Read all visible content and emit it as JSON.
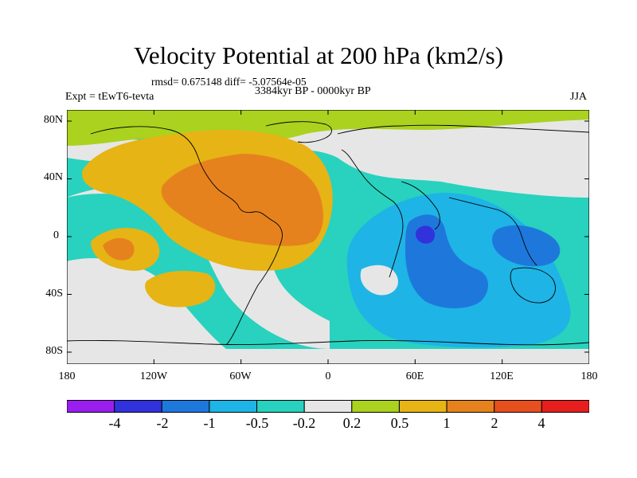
{
  "title": "Velocity Potential at 200 hPa (km2/s)",
  "stats": "rmsd= 0.675148  diff= -5.07564e-05",
  "period": "3384kyr BP - 0000kyr BP",
  "experiment": "Expt = tEwT6-tevta",
  "season": "JJA",
  "y_ticks": [
    "80N",
    "40N",
    "0",
    "40S",
    "80S"
  ],
  "x_ticks": [
    "180",
    "120W",
    "60W",
    "0",
    "60E",
    "120E",
    "180"
  ],
  "colorbar": {
    "labels": [
      "-4",
      "-2",
      "-1",
      "-0.5",
      "-0.2",
      "0.2",
      "0.5",
      "1",
      "2",
      "4"
    ],
    "colors": [
      "#9a1fee",
      "#3232dc",
      "#1e78dc",
      "#1eb4e6",
      "#28d2be",
      "#e6e6e6",
      "#aad21e",
      "#e6b414",
      "#e6821e",
      "#e6501e",
      "#e61e1e"
    ]
  },
  "map_palette": {
    "ocean_background": "#28d2be",
    "neutral": "#e6e6e6",
    "weak_positive": "#aad21e",
    "moderate_positive": "#e6b414",
    "strong_positive": "#e6821e",
    "weak_negative": "#1eb4e6",
    "moderate_negative": "#1e78dc",
    "strong_negative": "#3232dc"
  }
}
